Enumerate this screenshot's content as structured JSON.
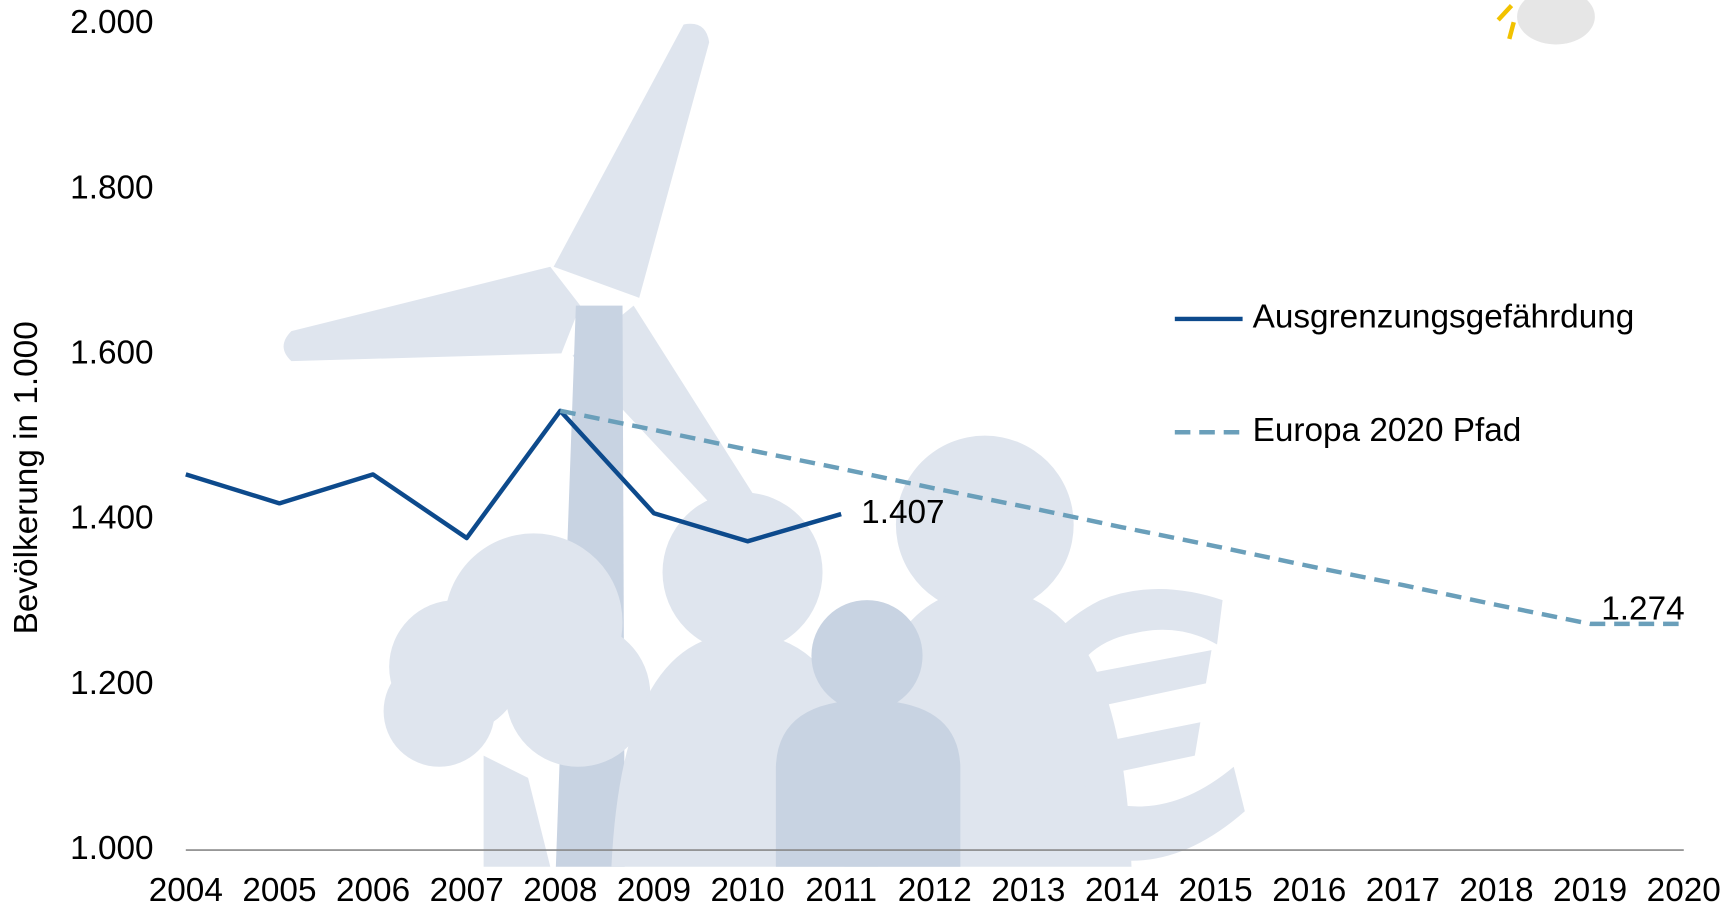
{
  "chart_data": {
    "type": "line",
    "y_label": "Bevölkerung in 1.000",
    "x": [
      2004,
      2005,
      2006,
      2007,
      2008,
      2009,
      2010,
      2011,
      2012,
      2013,
      2014,
      2015,
      2016,
      2017,
      2018,
      2019,
      2020
    ],
    "xlim": [
      2004,
      2020
    ],
    "xticks": [
      2004,
      2005,
      2006,
      2007,
      2008,
      2009,
      2010,
      2011,
      2012,
      2013,
      2014,
      2015,
      2016,
      2017,
      2018,
      2019,
      2020
    ],
    "ylim": [
      1000,
      2000
    ],
    "yticks": [
      {
        "value": 1000,
        "label": "1.000"
      },
      {
        "value": 1200,
        "label": "1.200"
      },
      {
        "value": 1400,
        "label": "1.400"
      },
      {
        "value": 1600,
        "label": "1.600"
      },
      {
        "value": 1800,
        "label": "1.800"
      },
      {
        "value": 2000,
        "label": "2.000"
      }
    ],
    "grid": false,
    "legend": "right",
    "series": [
      {
        "name": "Ausgrenzungsgefährdung",
        "color": "#0d4a8c",
        "dashed": false,
        "values": [
          1455,
          1420,
          1455,
          1378,
          1532,
          1408,
          1374,
          1407,
          null,
          null,
          null,
          null,
          null,
          null,
          null,
          null,
          null
        ],
        "value_labels": [
          null,
          null,
          null,
          null,
          null,
          null,
          null,
          "1.407",
          null,
          null,
          null,
          null,
          null,
          null,
          null,
          null,
          null
        ]
      },
      {
        "name": "Europa 2020 Pfad",
        "color": "#6a9fba",
        "dashed": true,
        "values": [
          null,
          null,
          null,
          null,
          1532,
          1509,
          1485,
          1462,
          1438,
          1415,
          1391,
          1368,
          1344,
          1321,
          1297,
          1274,
          1274
        ],
        "value_labels": [
          null,
          null,
          null,
          null,
          null,
          null,
          null,
          null,
          null,
          null,
          null,
          null,
          null,
          null,
          null,
          "1.274",
          null
        ]
      }
    ]
  }
}
